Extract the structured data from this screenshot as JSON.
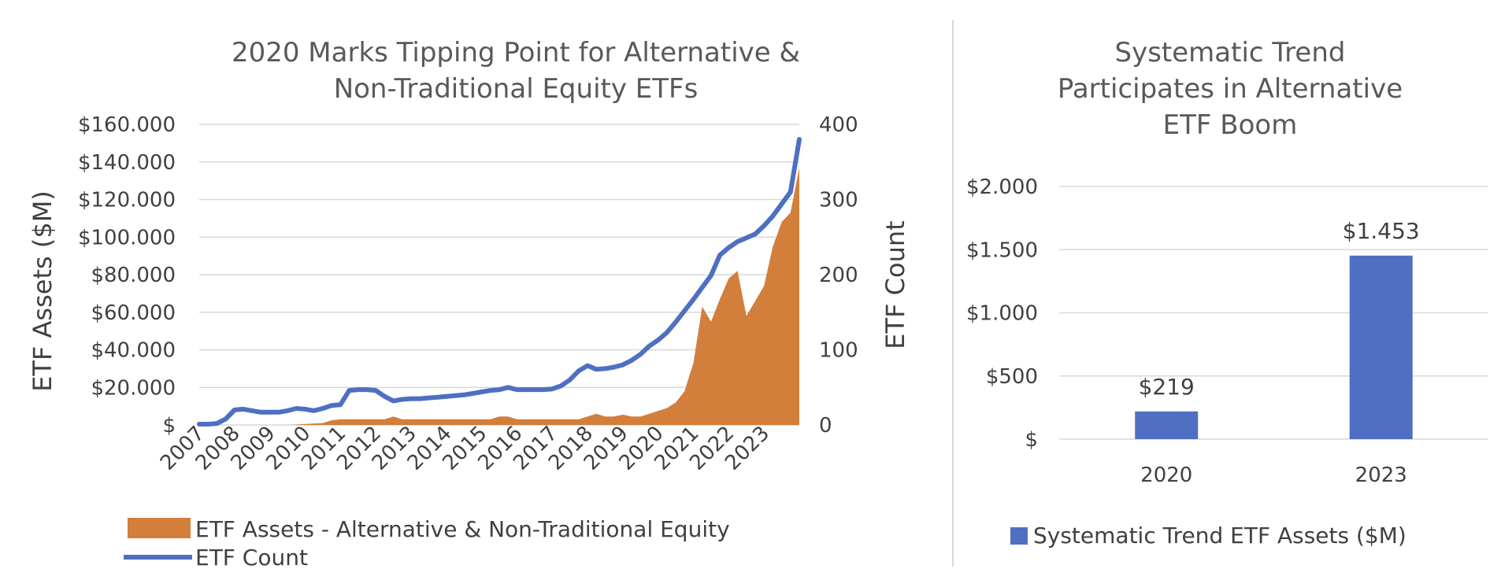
{
  "chart_data": [
    {
      "type": "area+line",
      "title": "2020 Marks Tipping Point for Alternative & Non-Traditional Equity ETFs",
      "title_lines": [
        "2020 Marks Tipping Point for Alternative &",
        "Non-Traditional Equity ETFs"
      ],
      "ylabel": "ETF Assets ($M)",
      "y2label": "ETF Count",
      "ylim": [
        0,
        160000
      ],
      "y2lim": [
        0,
        400
      ],
      "y_ticks": [
        "$",
        "$20.000",
        "$40.000",
        "$60.000",
        "$80.000",
        "$100.000",
        "$120.000",
        "$140.000",
        "$160.000"
      ],
      "y2_ticks": [
        "0",
        "100",
        "200",
        "300",
        "400"
      ],
      "x_labels": [
        "2007",
        "2008",
        "2009",
        "2010",
        "2011",
        "2012",
        "2013",
        "2014",
        "2015",
        "2016",
        "2017",
        "2018",
        "2019",
        "2020",
        "2021",
        "2022",
        "2023"
      ],
      "x_range": [
        2007,
        2024
      ],
      "grid": true,
      "legend_position": "bottom-left",
      "series": [
        {
          "name": "ETF Assets - Alternative & Non-Traditional Equity",
          "axis": "left",
          "kind": "area",
          "color": "#d27f3c",
          "x": [
            2007.0,
            2007.25,
            2007.5,
            2007.75,
            2008.0,
            2008.25,
            2008.5,
            2008.75,
            2009.0,
            2009.25,
            2009.5,
            2009.75,
            2010.0,
            2010.25,
            2010.5,
            2010.75,
            2011.0,
            2011.25,
            2011.5,
            2011.75,
            2012.0,
            2012.25,
            2012.5,
            2012.75,
            2013.0,
            2013.25,
            2013.5,
            2013.75,
            2014.0,
            2014.25,
            2014.5,
            2014.75,
            2015.0,
            2015.25,
            2015.5,
            2015.75,
            2016.0,
            2016.25,
            2016.5,
            2016.75,
            2017.0,
            2017.25,
            2017.5,
            2017.75,
            2018.0,
            2018.25,
            2018.5,
            2018.75,
            2019.0,
            2019.25,
            2019.5,
            2019.75,
            2020.0,
            2020.25,
            2020.5,
            2020.75,
            2021.0,
            2021.25,
            2021.5,
            2021.75,
            2022.0,
            2022.25,
            2022.5,
            2022.75,
            2023.0,
            2023.25,
            2023.5,
            2023.75,
            2024.0
          ],
          "values": [
            0,
            0,
            0,
            0,
            0,
            0,
            0,
            0,
            0,
            0,
            0,
            200,
            500,
            800,
            1000,
            2500,
            3000,
            3000,
            3000,
            3000,
            3000,
            3000,
            4500,
            3000,
            3000,
            3000,
            3000,
            3000,
            3000,
            3000,
            3000,
            3000,
            3000,
            3000,
            4500,
            4500,
            3000,
            3000,
            3000,
            3000,
            3000,
            3000,
            3000,
            3000,
            4500,
            6000,
            4500,
            4500,
            5500,
            4500,
            4500,
            6000,
            7500,
            9000,
            12000,
            18000,
            33000,
            63000,
            55000,
            67000,
            78000,
            82000,
            58000,
            66000,
            74000,
            95000,
            108000,
            113000,
            137000
          ]
        },
        {
          "name": "ETF Count",
          "axis": "right",
          "kind": "line",
          "color": "#4e6fc2",
          "x": [
            2007.0,
            2007.25,
            2007.5,
            2007.75,
            2008.0,
            2008.25,
            2008.5,
            2008.75,
            2009.0,
            2009.25,
            2009.5,
            2009.75,
            2010.0,
            2010.25,
            2010.5,
            2010.75,
            2011.0,
            2011.25,
            2011.5,
            2011.75,
            2012.0,
            2012.25,
            2012.5,
            2012.75,
            2013.0,
            2013.25,
            2013.5,
            2013.75,
            2014.0,
            2014.25,
            2014.5,
            2014.75,
            2015.0,
            2015.25,
            2015.5,
            2015.75,
            2016.0,
            2016.25,
            2016.5,
            2016.75,
            2017.0,
            2017.25,
            2017.5,
            2017.75,
            2018.0,
            2018.25,
            2018.5,
            2018.75,
            2019.0,
            2019.25,
            2019.5,
            2019.75,
            2020.0,
            2020.25,
            2020.5,
            2020.75,
            2021.0,
            2021.25,
            2021.5,
            2021.75,
            2022.0,
            2022.25,
            2022.5,
            2022.75,
            2023.0,
            2023.25,
            2023.5,
            2023.75,
            2024.0
          ],
          "values": [
            1,
            1,
            2,
            8,
            20,
            21,
            19,
            17,
            17,
            17,
            19,
            22,
            21,
            19,
            22,
            26,
            27,
            46,
            47,
            47,
            46,
            38,
            32,
            34,
            35,
            35,
            36,
            37,
            38,
            39,
            40,
            42,
            44,
            46,
            47,
            50,
            47,
            47,
            47,
            47,
            48,
            52,
            60,
            72,
            79,
            74,
            75,
            77,
            80,
            86,
            94,
            105,
            113,
            123,
            137,
            152,
            167,
            183,
            199,
            226,
            236,
            244,
            249,
            254,
            265,
            278,
            294,
            310,
            380
          ]
        }
      ]
    },
    {
      "type": "bar",
      "title": "Systematic Trend Participates in Alternative ETF Boom",
      "title_lines": [
        "Systematic Trend",
        "Participates in Alternative",
        "ETF Boom"
      ],
      "categories": [
        "2020",
        "2023"
      ],
      "series": [
        {
          "name": "Systematic Trend ETF Assets ($M)",
          "color": "#4e6fc2",
          "values": [
            219,
            1453
          ]
        }
      ],
      "data_labels": [
        "$219",
        "$1.453"
      ],
      "ylim": [
        0,
        2000
      ],
      "y_ticks": [
        "$",
        "$500",
        "$1.000",
        "$1.500",
        "$2.000"
      ],
      "grid": true,
      "legend_position": "bottom"
    }
  ]
}
